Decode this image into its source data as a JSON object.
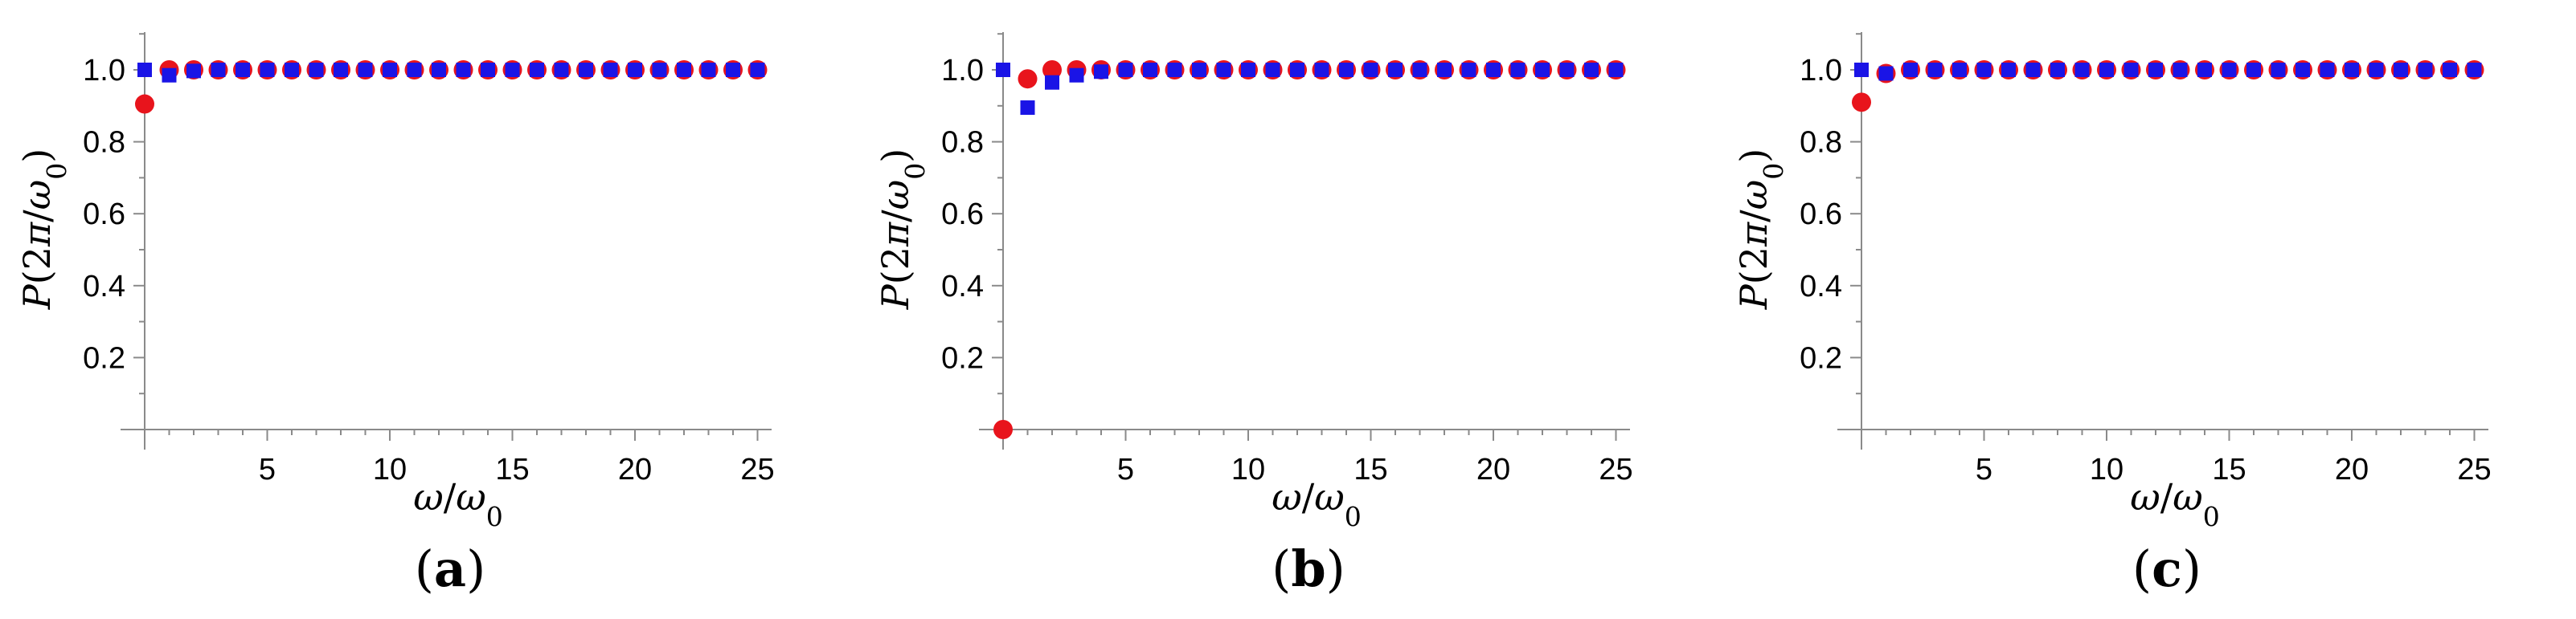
{
  "colors": {
    "series_a": "#e8141c",
    "series_b": "#1a14e6"
  },
  "chart_data": [
    {
      "type": "scatter",
      "panel_label": "(a)",
      "xlabel": "ω/ω0",
      "ylabel": "P(2π/ω0)",
      "xticks": [
        "5",
        "10",
        "15",
        "20",
        "25"
      ],
      "yticks": [
        "0.2",
        "0.4",
        "0.6",
        "0.8",
        "1.0"
      ],
      "xlim": [
        -1,
        26
      ],
      "ylim": [
        0,
        1.1
      ],
      "series": [
        {
          "marker": "circle",
          "color": "#e8141c",
          "x": [
            0,
            1,
            2,
            3,
            4,
            5,
            6,
            7,
            8,
            9,
            10,
            11,
            12,
            13,
            14,
            15,
            16,
            17,
            18,
            19,
            20,
            21,
            22,
            23,
            24,
            25
          ],
          "y": [
            0.905,
            1.0,
            1.0,
            1.0,
            1.0,
            1.0,
            1.0,
            1.0,
            1.0,
            1.0,
            1.0,
            1.0,
            1.0,
            1.0,
            1.0,
            1.0,
            1.0,
            1.0,
            1.0,
            1.0,
            1.0,
            1.0,
            1.0,
            1.0,
            1.0,
            1.0
          ]
        },
        {
          "marker": "square",
          "color": "#1a14e6",
          "x": [
            0,
            1,
            2,
            3,
            4,
            5,
            6,
            7,
            8,
            9,
            10,
            11,
            12,
            13,
            14,
            15,
            16,
            17,
            18,
            19,
            20,
            21,
            22,
            23,
            24,
            25
          ],
          "y": [
            1.0,
            0.985,
            0.997,
            1.0,
            1.0,
            1.0,
            1.0,
            1.0,
            1.0,
            1.0,
            1.0,
            1.0,
            1.0,
            1.0,
            1.0,
            1.0,
            1.0,
            1.0,
            1.0,
            1.0,
            1.0,
            1.0,
            1.0,
            1.0,
            1.0,
            1.0
          ]
        }
      ]
    },
    {
      "type": "scatter",
      "panel_label": "(b)",
      "xlabel": "ω/ω0",
      "ylabel": "P(2π/ω0)",
      "xticks": [
        "5",
        "10",
        "15",
        "20",
        "25"
      ],
      "yticks": [
        "0.2",
        "0.4",
        "0.6",
        "0.8",
        "1.0"
      ],
      "xlim": [
        -1,
        26
      ],
      "ylim": [
        0,
        1.1
      ],
      "series": [
        {
          "marker": "circle",
          "color": "#e8141c",
          "x": [
            0,
            1,
            2,
            3,
            4,
            5,
            6,
            7,
            8,
            9,
            10,
            11,
            12,
            13,
            14,
            15,
            16,
            17,
            18,
            19,
            20,
            21,
            22,
            23,
            24,
            25
          ],
          "y": [
            0.0,
            0.975,
            1.0,
            1.0,
            1.0,
            1.0,
            1.0,
            1.0,
            1.0,
            1.0,
            1.0,
            1.0,
            1.0,
            1.0,
            1.0,
            1.0,
            1.0,
            1.0,
            1.0,
            1.0,
            1.0,
            1.0,
            1.0,
            1.0,
            1.0,
            1.0
          ]
        },
        {
          "marker": "square",
          "color": "#1a14e6",
          "x": [
            0,
            1,
            2,
            3,
            4,
            5,
            6,
            7,
            8,
            9,
            10,
            11,
            12,
            13,
            14,
            15,
            16,
            17,
            18,
            19,
            20,
            21,
            22,
            23,
            24,
            25
          ],
          "y": [
            1.0,
            0.895,
            0.965,
            0.985,
            0.995,
            1.0,
            1.0,
            1.0,
            1.0,
            1.0,
            1.0,
            1.0,
            1.0,
            1.0,
            1.0,
            1.0,
            1.0,
            1.0,
            1.0,
            1.0,
            1.0,
            1.0,
            1.0,
            1.0,
            1.0,
            1.0
          ]
        }
      ]
    },
    {
      "type": "scatter",
      "panel_label": "(c)",
      "xlabel": "ω/ω0",
      "ylabel": "P(2π/ω0)",
      "xticks": [
        "5",
        "10",
        "15",
        "20",
        "25"
      ],
      "yticks": [
        "0.2",
        "0.4",
        "0.6",
        "0.8",
        "1.0"
      ],
      "xlim": [
        -1,
        26
      ],
      "ylim": [
        0,
        1.1
      ],
      "series": [
        {
          "marker": "circle",
          "color": "#e8141c",
          "x": [
            0,
            1,
            2,
            3,
            4,
            5,
            6,
            7,
            8,
            9,
            10,
            11,
            12,
            13,
            14,
            15,
            16,
            17,
            18,
            19,
            20,
            21,
            22,
            23,
            24,
            25
          ],
          "y": [
            0.91,
            0.99,
            1.0,
            1.0,
            1.0,
            1.0,
            1.0,
            1.0,
            1.0,
            1.0,
            1.0,
            1.0,
            1.0,
            1.0,
            1.0,
            1.0,
            1.0,
            1.0,
            1.0,
            1.0,
            1.0,
            1.0,
            1.0,
            1.0,
            1.0,
            1.0
          ]
        },
        {
          "marker": "square",
          "color": "#1a14e6",
          "x": [
            0,
            1,
            2,
            3,
            4,
            5,
            6,
            7,
            8,
            9,
            10,
            11,
            12,
            13,
            14,
            15,
            16,
            17,
            18,
            19,
            20,
            21,
            22,
            23,
            24,
            25
          ],
          "y": [
            1.0,
            0.99,
            1.0,
            1.0,
            1.0,
            1.0,
            1.0,
            1.0,
            1.0,
            1.0,
            1.0,
            1.0,
            1.0,
            1.0,
            1.0,
            1.0,
            1.0,
            1.0,
            1.0,
            1.0,
            1.0,
            1.0,
            1.0,
            1.0,
            1.0,
            1.0
          ]
        }
      ]
    }
  ]
}
